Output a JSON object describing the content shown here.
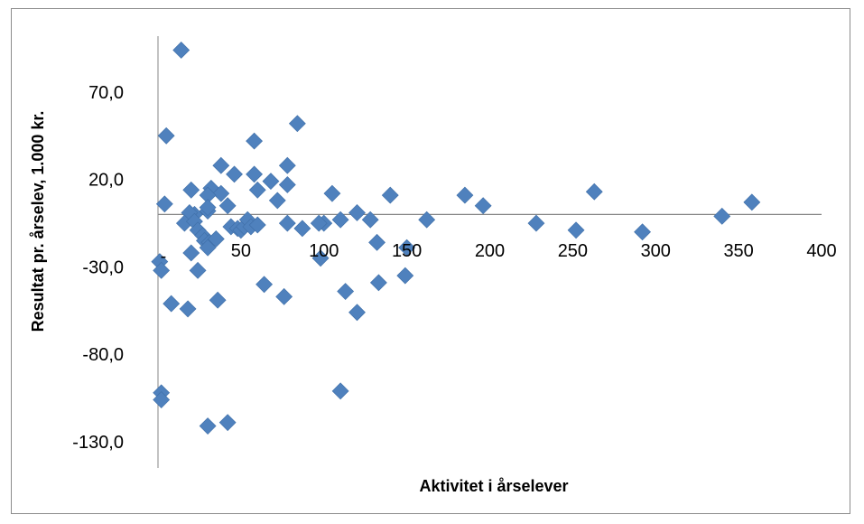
{
  "chart_data": {
    "type": "scatter",
    "title": "",
    "xlabel": "Aktivitet i årselever",
    "ylabel": "Resultat pr. årselev, 1.000 kr.",
    "xlim": [
      0,
      400
    ],
    "ylim": [
      -145,
      102
    ],
    "x_ticks": [
      50,
      100,
      150,
      200,
      250,
      300,
      350,
      400
    ],
    "x_tick_labels": [
      "50",
      "100",
      "150",
      "200",
      "250",
      "300",
      "350",
      "400"
    ],
    "y_ticks": [
      70,
      20,
      -30,
      -80,
      -130
    ],
    "y_tick_labels": [
      "70,0",
      "20,0",
      "-30,0",
      "-80,0",
      "-130,0"
    ],
    "x_tick_extra_label": "-",
    "grid": false,
    "legend": "none",
    "marker": "diamond",
    "marker_color": "#4f81bd",
    "x": [
      14,
      5,
      46,
      84,
      58,
      38,
      78,
      32,
      38,
      42,
      58,
      78,
      60,
      20,
      30,
      4,
      72,
      68,
      105,
      140,
      185,
      196,
      263,
      358,
      22,
      30,
      30,
      19,
      16,
      22,
      24,
      27,
      28,
      31,
      35,
      44,
      48,
      50,
      52,
      54,
      56,
      60,
      78,
      100,
      110,
      120,
      128,
      132,
      150,
      162,
      228,
      252,
      292,
      340,
      97,
      87,
      1,
      2,
      20,
      24,
      30,
      64,
      76,
      98,
      113,
      120,
      133,
      149,
      8,
      36,
      18,
      2,
      2,
      110,
      30,
      42
    ],
    "y": [
      94,
      45,
      23,
      52,
      42,
      28,
      28,
      15,
      12,
      5,
      23,
      17,
      14,
      14,
      11,
      6,
      8,
      19,
      12,
      11,
      11,
      5,
      13,
      7,
      0,
      2,
      4,
      1,
      -5,
      -4,
      -9,
      -12,
      -15,
      -16,
      -14,
      -7,
      -8,
      -9,
      -7,
      -3,
      -7,
      -6,
      -5,
      -5,
      -3,
      1,
      -3,
      -16,
      -19,
      -3,
      -5,
      -9,
      -10,
      -1,
      -5,
      -8,
      -27,
      -32,
      -22,
      -32,
      -19,
      -40,
      -47,
      -25,
      -44,
      -56,
      -39,
      -35,
      -51,
      -49,
      -54,
      -102,
      -106,
      -101,
      -121,
      -119
    ]
  }
}
